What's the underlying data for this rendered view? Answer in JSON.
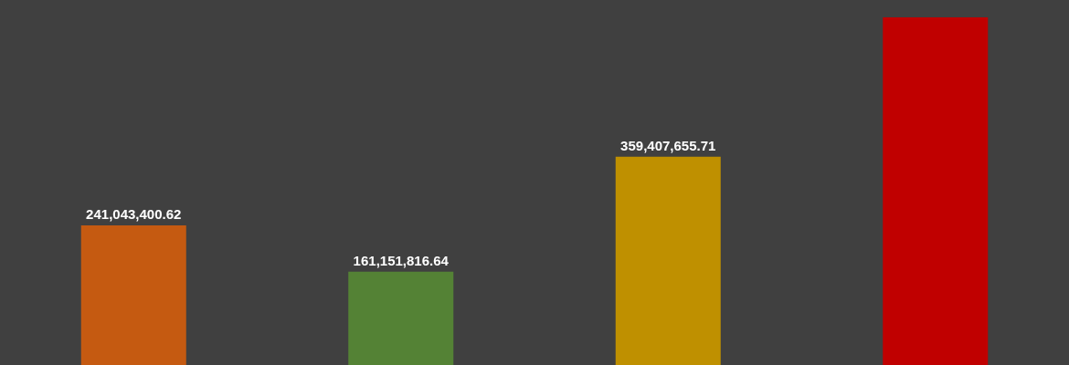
{
  "chart_data": {
    "type": "bar",
    "categories": [
      null,
      null,
      null,
      null
    ],
    "values": [
      241043400.62,
      161151816.64,
      359407655.71,
      600000000
    ],
    "colors": [
      "#c55a11",
      "#548235",
      "#bf9000",
      "#c00000"
    ],
    "value_labels": [
      "241,043,400.62",
      "161,151,816.64",
      "359,407,655.71",
      null
    ],
    "tick_labels": false,
    "grid": false,
    "legend": false
  }
}
